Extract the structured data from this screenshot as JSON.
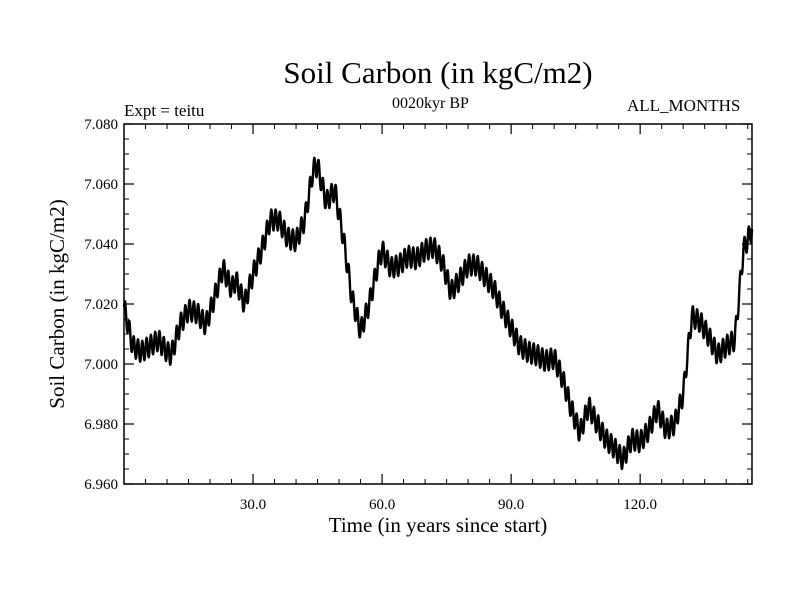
{
  "chart_data": {
    "type": "line",
    "title": "Soil Carbon (in kgC/m2)",
    "subtitle_left": "Expt = teitu",
    "subtitle_center": "0020kyr BP",
    "subtitle_right": "ALL_MONTHS",
    "xlabel": "Time (in years since start)",
    "ylabel": "Soil Carbon (in kgC/m2)",
    "xlim": [
      0,
      146
    ],
    "ylim": [
      6.96,
      7.08
    ],
    "x_ticks": [
      30,
      60,
      90,
      120
    ],
    "x_tick_labels": [
      "30.0",
      "60.0",
      "90.0",
      "120.0"
    ],
    "y_ticks": [
      6.96,
      6.98,
      7.0,
      7.02,
      7.04,
      7.06,
      7.08
    ],
    "y_tick_labels": [
      "6.960",
      "6.980",
      "7.000",
      "7.020",
      "7.040",
      "7.060",
      "7.080"
    ],
    "seasonal_amplitude": 0.0035,
    "series": [
      {
        "name": "Soil Carbon",
        "x": [
          0,
          2,
          4,
          6,
          8,
          10,
          11,
          13,
          15,
          17,
          19,
          21,
          23,
          25,
          26,
          28,
          30,
          32,
          34,
          36,
          38,
          40,
          42,
          44,
          45,
          47,
          49,
          51,
          53,
          55,
          57,
          59,
          60,
          62,
          64,
          66,
          68,
          70,
          72,
          74,
          76,
          78,
          80,
          82,
          84,
          86,
          88,
          90,
          92,
          94,
          96,
          98,
          100,
          102,
          104,
          106,
          108,
          110,
          112,
          114,
          116,
          118,
          120,
          122,
          124,
          126,
          128,
          130,
          132,
          134,
          136,
          138,
          140,
          142,
          144,
          146
        ],
        "values": [
          7.019,
          7.006,
          7.004,
          7.006,
          7.008,
          7.004,
          7.003,
          7.013,
          7.018,
          7.017,
          7.013,
          7.022,
          7.032,
          7.025,
          7.028,
          7.02,
          7.03,
          7.038,
          7.048,
          7.048,
          7.042,
          7.041,
          7.048,
          7.065,
          7.066,
          7.054,
          7.058,
          7.042,
          7.022,
          7.011,
          7.02,
          7.033,
          7.038,
          7.032,
          7.033,
          7.036,
          7.035,
          7.038,
          7.039,
          7.034,
          7.024,
          7.028,
          7.033,
          7.033,
          7.029,
          7.025,
          7.018,
          7.012,
          7.006,
          7.004,
          7.003,
          7.001,
          7.002,
          6.995,
          6.985,
          6.977,
          6.986,
          6.98,
          6.975,
          6.972,
          6.968,
          6.975,
          6.974,
          6.978,
          6.985,
          6.978,
          6.98,
          6.99,
          7.016,
          7.014,
          7.009,
          7.003,
          7.006,
          7.008,
          7.038,
          7.045
        ]
      }
    ]
  }
}
